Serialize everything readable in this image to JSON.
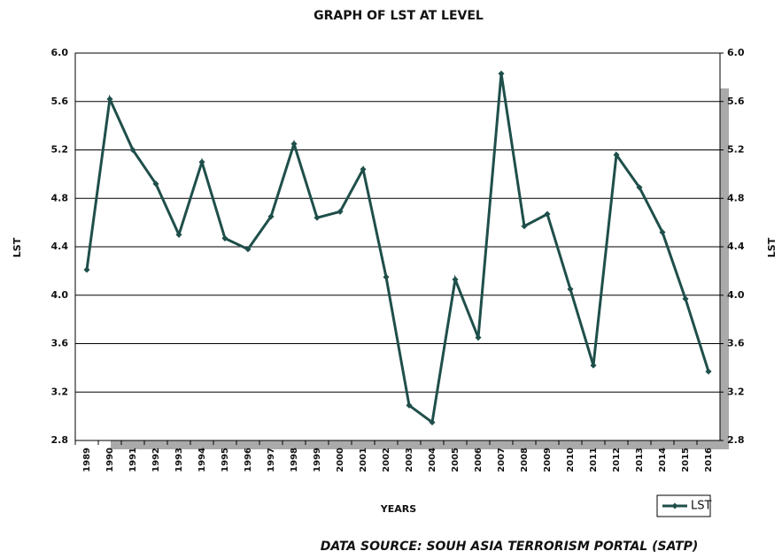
{
  "chart_data": {
    "type": "line",
    "title": "GRAPH OF LST AT LEVEL",
    "x_label": "YEARS",
    "y_label": "LST",
    "y2_label": "LST",
    "source": "DATA SOURCE: SOUH ASIA TERRORISM PORTAL (SATP)",
    "categories": [
      "1989",
      "1990",
      "1991",
      "1992",
      "1993",
      "1994",
      "1995",
      "1996",
      "1997",
      "1998",
      "1999",
      "2000",
      "2001",
      "2002",
      "2003",
      "2004",
      "2005",
      "2006",
      "2007",
      "2008",
      "2009",
      "2010",
      "2011",
      "2012",
      "2013",
      "2014",
      "2015",
      "2016"
    ],
    "series": [
      {
        "name": "LST",
        "color": "#1f4f4a",
        "values": [
          4.21,
          5.62,
          5.2,
          4.92,
          4.5,
          5.1,
          4.47,
          4.38,
          4.65,
          5.25,
          4.64,
          4.69,
          5.04,
          4.15,
          3.09,
          2.95,
          4.13,
          3.65,
          5.83,
          4.57,
          4.67,
          4.05,
          3.42,
          5.16,
          4.89,
          4.52,
          3.97,
          3.37
        ]
      }
    ],
    "ylim": [
      2.8,
      6.0
    ],
    "yticks": [
      2.8,
      3.2,
      3.6,
      {
        "value": 4,
        "label": "4.0"
      },
      4.4,
      4.8,
      5.2,
      5.6,
      {
        "value": 6,
        "label": "6.0"
      }
    ],
    "y2lim": [
      2.8,
      6.0
    ],
    "y2ticks": [
      2.8,
      3.2,
      3.6,
      {
        "value": 4,
        "label": "4.0"
      },
      4.4,
      4.8,
      5.2,
      5.6,
      {
        "value": 6,
        "label": "6.0"
      }
    ],
    "grid": true,
    "legend": "bottom-right"
  }
}
